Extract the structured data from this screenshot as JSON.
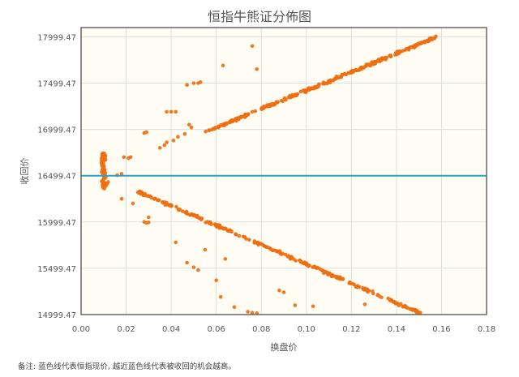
{
  "chart_data": {
    "type": "scatter",
    "title": "恒指牛熊证分佈图",
    "xlabel": "换盘价",
    "ylabel": "收回价",
    "xlim": [
      0,
      0.18
    ],
    "ylim": [
      14999.47,
      18099.47
    ],
    "x_ticks": [
      "0.00",
      "0.02",
      "0.04",
      "0.06",
      "0.08",
      "0.10",
      "0.12",
      "0.14",
      "0.16",
      "0.18"
    ],
    "y_ticks": [
      "14999.47",
      "15499.47",
      "15999.47",
      "16499.47",
      "16999.47",
      "17499.47",
      "17999.47"
    ],
    "reference_line": 16499.47,
    "grid": true,
    "colors": {
      "points": "#ee6f12",
      "reference_line": "#29a3c4",
      "plot_background": "#fffdf3",
      "grid": "#dddddd"
    },
    "clusters": {
      "bull": {
        "start": [
          0.025,
          16330
        ],
        "end": [
          0.152,
          15000
        ],
        "count": 260,
        "spread": 22
      },
      "bear": {
        "start": [
          0.055,
          16970
        ],
        "end": [
          0.158,
          18000
        ],
        "count": 280,
        "spread": 22
      },
      "near_zero": {
        "x_range": [
          0.009,
          0.011
        ],
        "y_range": [
          16360,
          16740
        ],
        "count": 45
      }
    },
    "sample_points": [
      [
        0.0095,
        16740
      ],
      [
        0.0098,
        16700
      ],
      [
        0.0101,
        16660
      ],
      [
        0.0099,
        16630
      ],
      [
        0.0102,
        16600
      ],
      [
        0.0097,
        16570
      ],
      [
        0.0104,
        16540
      ],
      [
        0.0096,
        16520
      ],
      [
        0.0103,
        16480
      ],
      [
        0.01,
        16460
      ],
      [
        0.0098,
        16440
      ],
      [
        0.0105,
        16420
      ],
      [
        0.0101,
        16400
      ],
      [
        0.0096,
        16380
      ],
      [
        0.0103,
        16360
      ],
      [
        0.011,
        16390
      ],
      [
        0.0115,
        16410
      ],
      [
        0.012,
        16430
      ],
      [
        0.016,
        16505
      ],
      [
        0.018,
        16520
      ],
      [
        0.019,
        16700
      ],
      [
        0.021,
        16690
      ],
      [
        0.022,
        16700
      ],
      [
        0.018,
        16250
      ],
      [
        0.023,
        16200
      ],
      [
        0.026,
        16330
      ],
      [
        0.027,
        16320
      ],
      [
        0.028,
        16000
      ],
      [
        0.029,
        15990
      ],
      [
        0.03,
        15995
      ],
      [
        0.03,
        16050
      ],
      [
        0.028,
        16960
      ],
      [
        0.029,
        16970
      ],
      [
        0.035,
        16800
      ],
      [
        0.037,
        16830
      ],
      [
        0.038,
        16860
      ],
      [
        0.041,
        16880
      ],
      [
        0.043,
        16920
      ],
      [
        0.046,
        16950
      ],
      [
        0.038,
        17190
      ],
      [
        0.04,
        17190
      ],
      [
        0.042,
        17190
      ],
      [
        0.048,
        17050
      ],
      [
        0.049,
        17020
      ],
      [
        0.047,
        17480
      ],
      [
        0.05,
        17500
      ],
      [
        0.052,
        17500
      ],
      [
        0.053,
        17510
      ],
      [
        0.042,
        15780
      ],
      [
        0.047,
        15560
      ],
      [
        0.05,
        15510
      ],
      [
        0.052,
        15480
      ],
      [
        0.055,
        15700
      ],
      [
        0.06,
        15370
      ],
      [
        0.064,
        15600
      ],
      [
        0.062,
        15190
      ],
      [
        0.068,
        15080
      ],
      [
        0.074,
        15030
      ],
      [
        0.076,
        15020
      ],
      [
        0.078,
        15015
      ],
      [
        0.063,
        17690
      ],
      [
        0.076,
        17900
      ],
      [
        0.078,
        17650
      ],
      [
        0.088,
        15260
      ],
      [
        0.09,
        15240
      ],
      [
        0.095,
        15100
      ],
      [
        0.103,
        15090
      ],
      [
        0.126,
        15110
      ]
    ]
  },
  "footnote": "备注:  蓝色线代表恒指现价, 越近蓝色线代表被收回的机会越高。"
}
